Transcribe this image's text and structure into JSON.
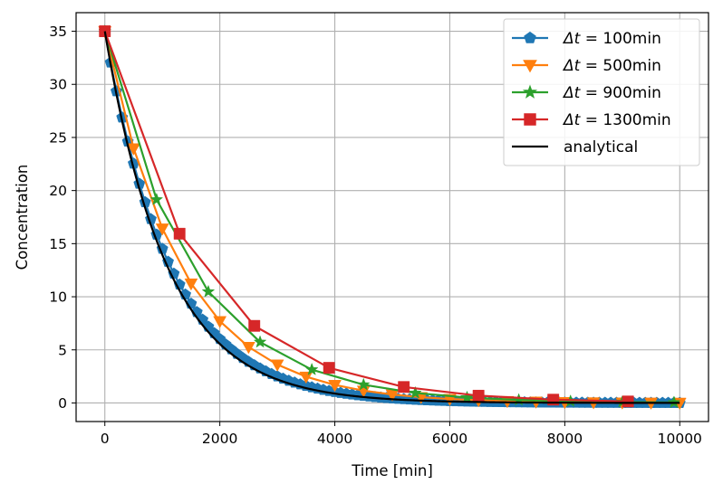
{
  "chart_data": {
    "type": "line",
    "xlabel": "Time [min]",
    "ylabel": "Concentration",
    "xlim": [
      -500,
      10500
    ],
    "ylim": [
      -1.75,
      36.75
    ],
    "xticks": [
      0,
      2000,
      4000,
      6000,
      8000,
      10000
    ],
    "yticks": [
      0,
      5,
      10,
      15,
      20,
      25,
      30,
      35
    ],
    "grid": true,
    "legend_position": "top-right",
    "initial_concentration": 35,
    "decay_rate_per_min": 0.00092,
    "series": [
      {
        "name": "Δt = 100min",
        "legend_prefix": "Δt = ",
        "legend_value": "100min",
        "dt": 100,
        "color": "#1f77b4",
        "marker": "pentagon"
      },
      {
        "name": "Δt = 500min",
        "legend_prefix": "Δt = ",
        "legend_value": "500min",
        "dt": 500,
        "color": "#ff7f0e",
        "marker": "triangle-down"
      },
      {
        "name": "Δt = 900min",
        "legend_prefix": "Δt = ",
        "legend_value": "900min",
        "dt": 900,
        "color": "#2ca02c",
        "marker": "star"
      },
      {
        "name": "Δt = 1300min",
        "legend_prefix": "Δt = ",
        "legend_value": "1300min",
        "dt": 1300,
        "color": "#d62728",
        "marker": "square"
      }
    ],
    "analytical": {
      "name": "analytical",
      "color": "#000000"
    }
  }
}
